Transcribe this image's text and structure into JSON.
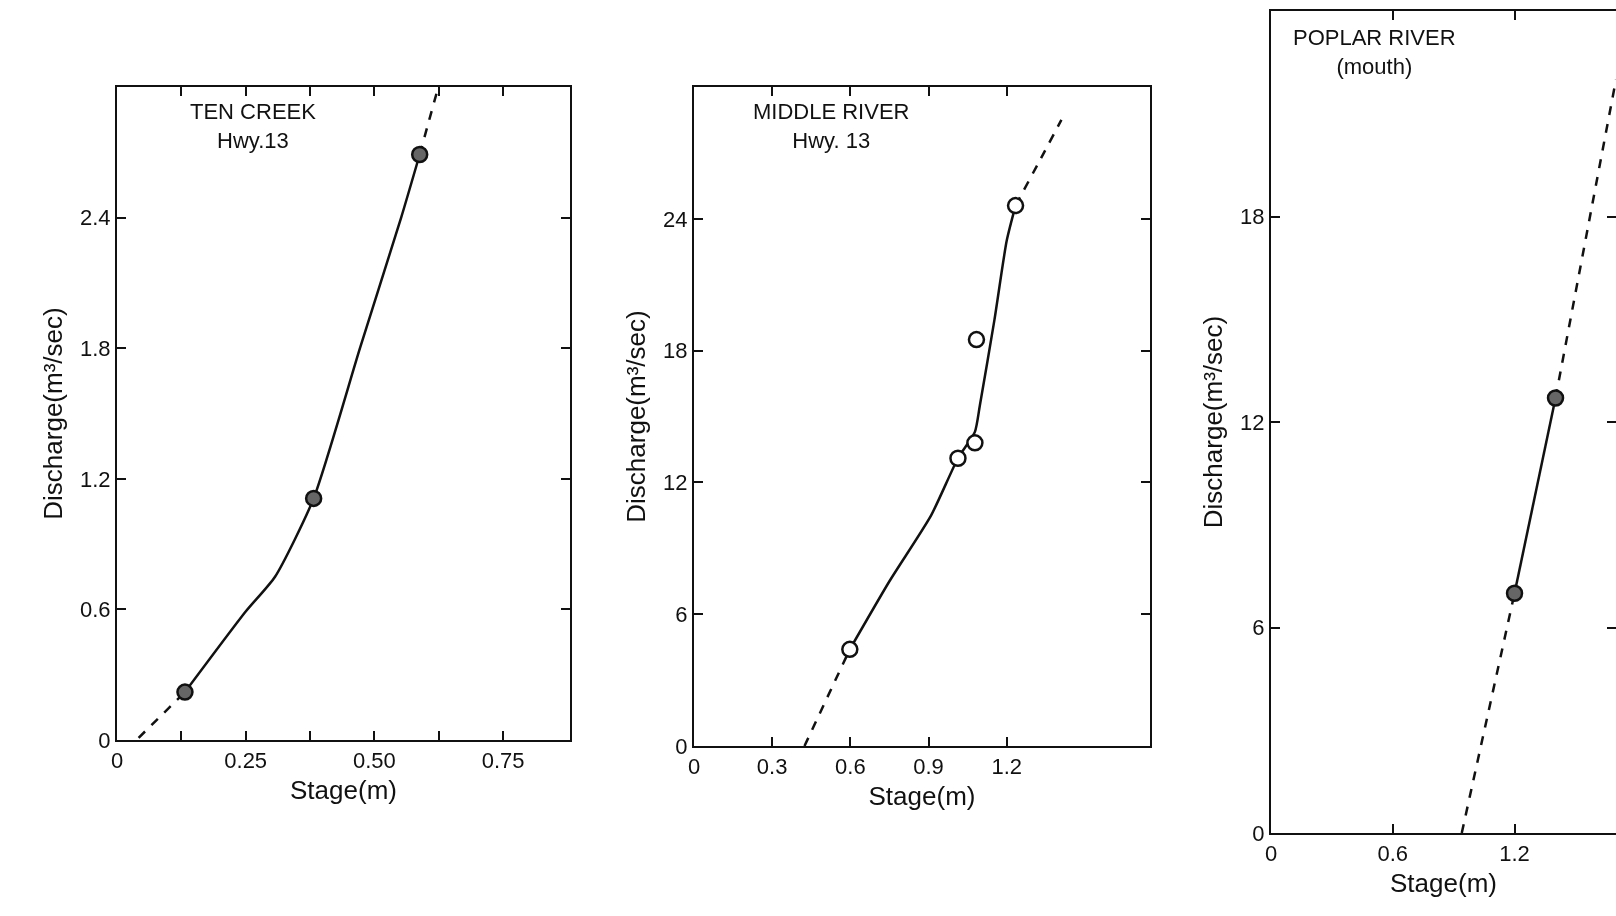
{
  "chart_data": [
    {
      "type": "scatter",
      "title": "TEN CREEK",
      "subtitle": "Hwy.13",
      "xlabel": "Stage(m)",
      "ylabel": "Discharge(m³/sec)",
      "xlim": [
        0,
        0.88
      ],
      "ylim": [
        0,
        3.0
      ],
      "xticks": [
        0,
        {
          "value": 0.125,
          "label": null
        },
        0.25,
        {
          "value": 0.375,
          "label": null
        },
        {
          "value": 0.5,
          "label": "0.50"
        },
        {
          "value": 0.625,
          "label": null
        },
        0.75
      ],
      "yticks": [
        0,
        0.6,
        1.2,
        1.8,
        2.4
      ],
      "series": [
        {
          "type": "line",
          "line_style": "dashed",
          "marker": "none",
          "color": "#111111",
          "x": [
            0.042,
            0.132
          ],
          "values": [
            0.01,
            0.22
          ]
        },
        {
          "type": "line",
          "line_style": "solid",
          "marker": "none",
          "color": "#111111",
          "x": [
            0.132,
            0.25,
            0.307,
            0.382,
            0.472,
            0.552,
            0.588
          ],
          "values": [
            0.22,
            0.59,
            0.75,
            1.11,
            1.8,
            2.4,
            2.69
          ]
        },
        {
          "type": "line",
          "line_style": "dashed",
          "marker": "none",
          "color": "#111111",
          "x": [
            0.588,
            0.623
          ],
          "values": [
            2.69,
            2.99
          ]
        },
        {
          "type": "scatter",
          "marker": "circle",
          "color": "#666666",
          "x": [
            0.132,
            0.382,
            0.588
          ],
          "values": [
            0.22,
            1.11,
            2.69
          ]
        }
      ]
    },
    {
      "type": "scatter",
      "title": "MIDDLE RIVER",
      "subtitle": "Hwy. 13",
      "xlabel": "Stage(m)",
      "ylabel": "Discharge(m³/sec)",
      "xlim": [
        0,
        1.75
      ],
      "ylim": [
        0,
        30
      ],
      "xticks": [
        0,
        0.3,
        0.6,
        0.9,
        1.2
      ],
      "yticks": [
        0,
        6,
        12,
        18,
        24
      ],
      "series": [
        {
          "type": "line",
          "line_style": "dashed",
          "marker": "none",
          "color": "#111111",
          "x": [
            0.424,
            0.598
          ],
          "values": [
            0,
            4.4
          ]
        },
        {
          "type": "line",
          "line_style": "solid",
          "marker": "none",
          "color": "#111111",
          "x": [
            0.598,
            0.75,
            0.91,
            1.013,
            1.078,
            1.097,
            1.153,
            1.2,
            1.234
          ],
          "values": [
            4.4,
            7.5,
            10.5,
            13.1,
            14.3,
            15.5,
            19.4,
            23.0,
            24.6
          ]
        },
        {
          "type": "line",
          "line_style": "dashed",
          "marker": "none",
          "color": "#111111",
          "x": [
            1.234,
            1.32,
            1.41
          ],
          "values": [
            24.6,
            26.5,
            28.5
          ]
        },
        {
          "type": "scatter",
          "marker": "circle",
          "color": "#ffffff",
          "x": [
            0.598,
            1.013,
            1.078,
            1.084,
            1.234
          ],
          "values": [
            4.4,
            13.1,
            13.8,
            18.5,
            24.6
          ]
        }
      ]
    },
    {
      "type": "scatter",
      "title": "POPLAR RIVER",
      "subtitle": "(mouth)",
      "xlabel": "Stage(m)",
      "ylabel": "Discharge(m³/sec)",
      "xlim": [
        0,
        1.7
      ],
      "ylim": [
        0,
        24
      ],
      "xticks": [
        0,
        0.6,
        1.2
      ],
      "yticks": [
        0,
        6,
        12,
        18
      ],
      "series": [
        {
          "type": "line",
          "line_style": "dashed",
          "marker": "none",
          "color": "#111111",
          "x": [
            0.94,
            1.2
          ],
          "values": [
            0,
            7.0
          ]
        },
        {
          "type": "line",
          "line_style": "solid",
          "marker": "none",
          "color": "#111111",
          "x": [
            1.2,
            1.402
          ],
          "values": [
            7.0,
            12.7
          ]
        },
        {
          "type": "line",
          "line_style": "dashed",
          "marker": "none",
          "color": "#111111",
          "x": [
            1.402,
            1.7
          ],
          "values": [
            12.7,
            22.0
          ]
        },
        {
          "type": "scatter",
          "marker": "circle",
          "color": "#666666",
          "x": [
            1.2,
            1.402
          ],
          "values": [
            7.0,
            12.7
          ]
        }
      ]
    }
  ]
}
